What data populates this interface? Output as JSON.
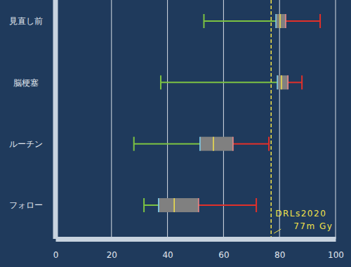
{
  "chart_data": {
    "type": "boxplot",
    "orientation": "horizontal",
    "categories": [
      "見直し前",
      "脳梗塞",
      "ルーチン",
      "フォロー"
    ],
    "values": [
      {
        "min": 53,
        "q1": 78.7,
        "median": 80.2,
        "q3": 82.2,
        "max": 94.5
      },
      {
        "min": 37.6,
        "q1": 79.2,
        "median": 80.7,
        "q3": 83,
        "max": 88
      },
      {
        "min": 28,
        "q1": 51.6,
        "median": 56.4,
        "q3": 63.4,
        "max": 76.2
      },
      {
        "min": 31.6,
        "q1": 36.8,
        "median": 42.4,
        "q3": 51.1,
        "max": 71.7
      }
    ],
    "color": "#808080",
    "xlim": [
      0,
      100
    ],
    "xticks": [
      0,
      20,
      40,
      60,
      80,
      100
    ],
    "grid": true,
    "annotations": [
      {
        "value": 77,
        "text": "DRLs2020",
        "label": "77m Gy"
      }
    ]
  }
}
